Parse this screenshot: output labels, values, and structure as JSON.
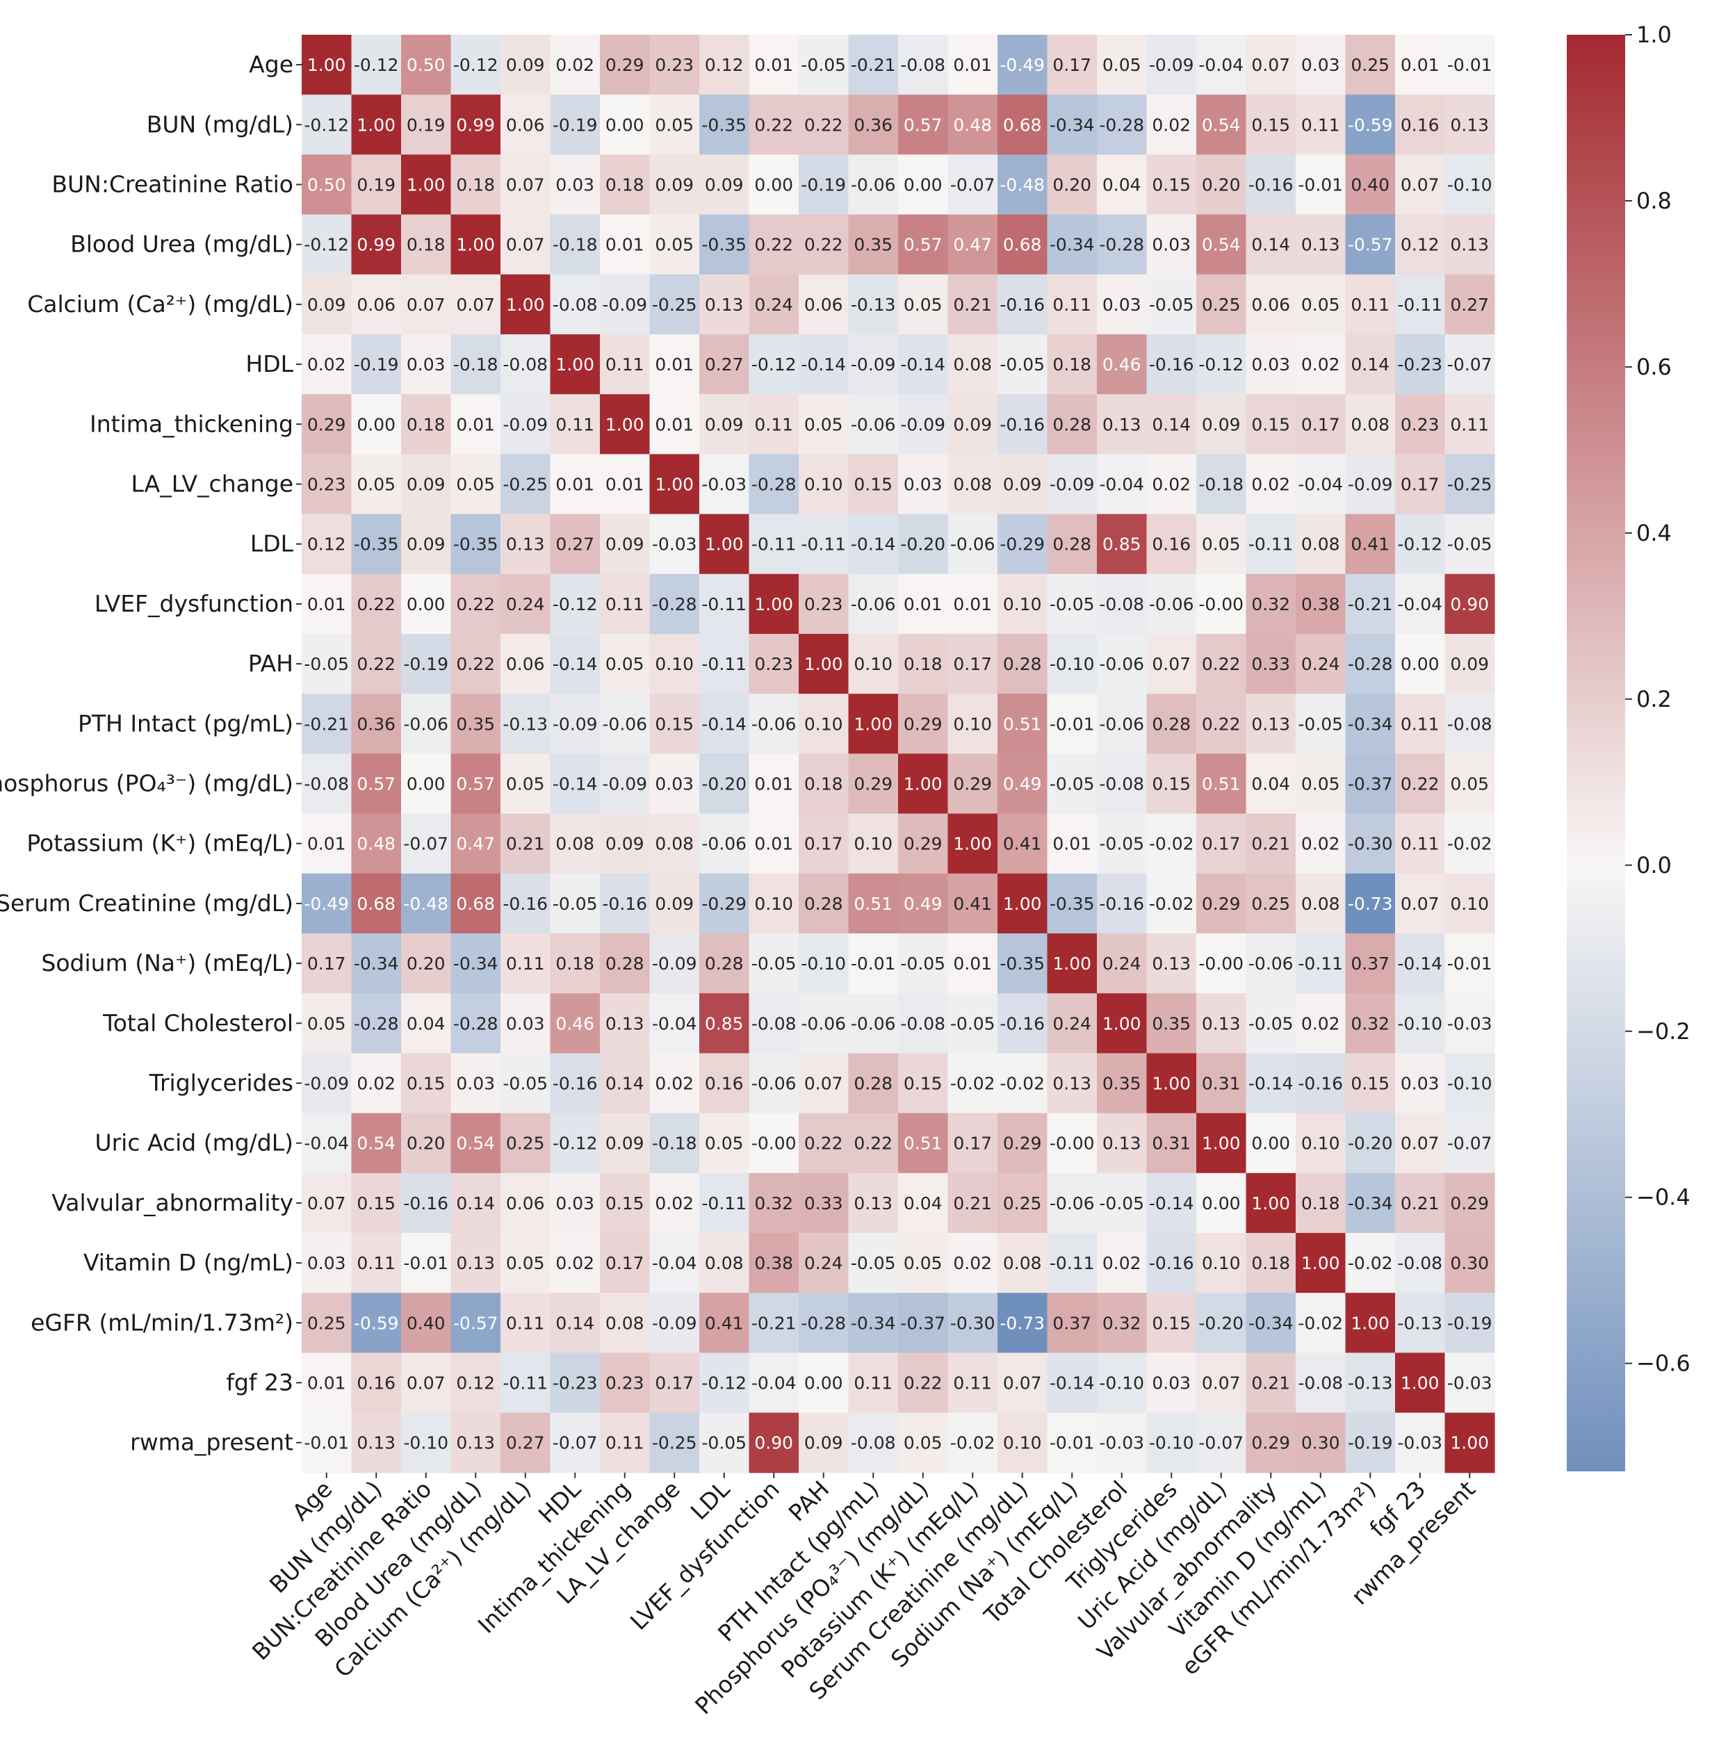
{
  "chart_data": {
    "type": "heatmap",
    "title": "",
    "xlabel": "",
    "ylabel": "",
    "labels": [
      "Age",
      "BUN (mg/dL)",
      "BUN:Creatinine Ratio",
      "Blood Urea (mg/dL)",
      "Calcium (Ca²⁺) (mg/dL)",
      "HDL",
      "Intima_thickening",
      "LA_LV_change",
      "LDL",
      "LVEF_dysfunction",
      "PAH",
      "PTH Intact (pg/mL)",
      "Phosphorus (PO₄³⁻) (mg/dL)",
      "Potassium (K⁺) (mEq/L)",
      "Serum Creatinine (mg/dL)",
      "Sodium (Na⁺) (mEq/L)",
      "Total Cholesterol",
      "Triglycerides",
      "Uric Acid (mg/dL)",
      "Valvular_abnormality",
      "Vitamin D (ng/mL)",
      "eGFR (mL/min/1.73m²)",
      "fgf 23",
      "rwma_present"
    ],
    "matrix": [
      [
        "1.00",
        "-0.12",
        "0.50",
        "-0.12",
        "0.09",
        "0.02",
        "0.29",
        "0.23",
        "0.12",
        "0.01",
        "-0.05",
        "-0.21",
        "-0.08",
        "0.01",
        "-0.49",
        "0.17",
        "0.05",
        "-0.09",
        "-0.04",
        "0.07",
        "0.03",
        "0.25",
        "0.01",
        "-0.01"
      ],
      [
        "-0.12",
        "1.00",
        "0.19",
        "0.99",
        "0.06",
        "-0.19",
        "0.00",
        "0.05",
        "-0.35",
        "0.22",
        "0.22",
        "0.36",
        "0.57",
        "0.48",
        "0.68",
        "-0.34",
        "-0.28",
        "0.02",
        "0.54",
        "0.15",
        "0.11",
        "-0.59",
        "0.16",
        "0.13"
      ],
      [
        "0.50",
        "0.19",
        "1.00",
        "0.18",
        "0.07",
        "0.03",
        "0.18",
        "0.09",
        "0.09",
        "0.00",
        "-0.19",
        "-0.06",
        "0.00",
        "-0.07",
        "-0.48",
        "0.20",
        "0.04",
        "0.15",
        "0.20",
        "-0.16",
        "-0.01",
        "0.40",
        "0.07",
        "-0.10"
      ],
      [
        "-0.12",
        "0.99",
        "0.18",
        "1.00",
        "0.07",
        "-0.18",
        "0.01",
        "0.05",
        "-0.35",
        "0.22",
        "0.22",
        "0.35",
        "0.57",
        "0.47",
        "0.68",
        "-0.34",
        "-0.28",
        "0.03",
        "0.54",
        "0.14",
        "0.13",
        "-0.57",
        "0.12",
        "0.13"
      ],
      [
        "0.09",
        "0.06",
        "0.07",
        "0.07",
        "1.00",
        "-0.08",
        "-0.09",
        "-0.25",
        "0.13",
        "0.24",
        "0.06",
        "-0.13",
        "0.05",
        "0.21",
        "-0.16",
        "0.11",
        "0.03",
        "-0.05",
        "0.25",
        "0.06",
        "0.05",
        "0.11",
        "-0.11",
        "0.27"
      ],
      [
        "0.02",
        "-0.19",
        "0.03",
        "-0.18",
        "-0.08",
        "1.00",
        "0.11",
        "0.01",
        "0.27",
        "-0.12",
        "-0.14",
        "-0.09",
        "-0.14",
        "0.08",
        "-0.05",
        "0.18",
        "0.46",
        "-0.16",
        "-0.12",
        "0.03",
        "0.02",
        "0.14",
        "-0.23",
        "-0.07"
      ],
      [
        "0.29",
        "0.00",
        "0.18",
        "0.01",
        "-0.09",
        "0.11",
        "1.00",
        "0.01",
        "0.09",
        "0.11",
        "0.05",
        "-0.06",
        "-0.09",
        "0.09",
        "-0.16",
        "0.28",
        "0.13",
        "0.14",
        "0.09",
        "0.15",
        "0.17",
        "0.08",
        "0.23",
        "0.11"
      ],
      [
        "0.23",
        "0.05",
        "0.09",
        "0.05",
        "-0.25",
        "0.01",
        "0.01",
        "1.00",
        "-0.03",
        "-0.28",
        "0.10",
        "0.15",
        "0.03",
        "0.08",
        "0.09",
        "-0.09",
        "-0.04",
        "0.02",
        "-0.18",
        "0.02",
        "-0.04",
        "-0.09",
        "0.17",
        "-0.25"
      ],
      [
        "0.12",
        "-0.35",
        "0.09",
        "-0.35",
        "0.13",
        "0.27",
        "0.09",
        "-0.03",
        "1.00",
        "-0.11",
        "-0.11",
        "-0.14",
        "-0.20",
        "-0.06",
        "-0.29",
        "0.28",
        "0.85",
        "0.16",
        "0.05",
        "-0.11",
        "0.08",
        "0.41",
        "-0.12",
        "-0.05"
      ],
      [
        "0.01",
        "0.22",
        "0.00",
        "0.22",
        "0.24",
        "-0.12",
        "0.11",
        "-0.28",
        "-0.11",
        "1.00",
        "0.23",
        "-0.06",
        "0.01",
        "0.01",
        "0.10",
        "-0.05",
        "-0.08",
        "-0.06",
        "-0.00",
        "0.32",
        "0.38",
        "-0.21",
        "-0.04",
        "0.90"
      ],
      [
        "-0.05",
        "0.22",
        "-0.19",
        "0.22",
        "0.06",
        "-0.14",
        "0.05",
        "0.10",
        "-0.11",
        "0.23",
        "1.00",
        "0.10",
        "0.18",
        "0.17",
        "0.28",
        "-0.10",
        "-0.06",
        "0.07",
        "0.22",
        "0.33",
        "0.24",
        "-0.28",
        "0.00",
        "0.09"
      ],
      [
        "-0.21",
        "0.36",
        "-0.06",
        "0.35",
        "-0.13",
        "-0.09",
        "-0.06",
        "0.15",
        "-0.14",
        "-0.06",
        "0.10",
        "1.00",
        "0.29",
        "0.10",
        "0.51",
        "-0.01",
        "-0.06",
        "0.28",
        "0.22",
        "0.13",
        "-0.05",
        "-0.34",
        "0.11",
        "-0.08"
      ],
      [
        "-0.08",
        "0.57",
        "0.00",
        "0.57",
        "0.05",
        "-0.14",
        "-0.09",
        "0.03",
        "-0.20",
        "0.01",
        "0.18",
        "0.29",
        "1.00",
        "0.29",
        "0.49",
        "-0.05",
        "-0.08",
        "0.15",
        "0.51",
        "0.04",
        "0.05",
        "-0.37",
        "0.22",
        "0.05"
      ],
      [
        "0.01",
        "0.48",
        "-0.07",
        "0.47",
        "0.21",
        "0.08",
        "0.09",
        "0.08",
        "-0.06",
        "0.01",
        "0.17",
        "0.10",
        "0.29",
        "1.00",
        "0.41",
        "0.01",
        "-0.05",
        "-0.02",
        "0.17",
        "0.21",
        "0.02",
        "-0.30",
        "0.11",
        "-0.02"
      ],
      [
        "-0.49",
        "0.68",
        "-0.48",
        "0.68",
        "-0.16",
        "-0.05",
        "-0.16",
        "0.09",
        "-0.29",
        "0.10",
        "0.28",
        "0.51",
        "0.49",
        "0.41",
        "1.00",
        "-0.35",
        "-0.16",
        "-0.02",
        "0.29",
        "0.25",
        "0.08",
        "-0.73",
        "0.07",
        "0.10"
      ],
      [
        "0.17",
        "-0.34",
        "0.20",
        "-0.34",
        "0.11",
        "0.18",
        "0.28",
        "-0.09",
        "0.28",
        "-0.05",
        "-0.10",
        "-0.01",
        "-0.05",
        "0.01",
        "-0.35",
        "1.00",
        "0.24",
        "0.13",
        "-0.00",
        "-0.06",
        "-0.11",
        "0.37",
        "-0.14",
        "-0.01"
      ],
      [
        "0.05",
        "-0.28",
        "0.04",
        "-0.28",
        "0.03",
        "0.46",
        "0.13",
        "-0.04",
        "0.85",
        "-0.08",
        "-0.06",
        "-0.06",
        "-0.08",
        "-0.05",
        "-0.16",
        "0.24",
        "1.00",
        "0.35",
        "0.13",
        "-0.05",
        "0.02",
        "0.32",
        "-0.10",
        "-0.03"
      ],
      [
        "-0.09",
        "0.02",
        "0.15",
        "0.03",
        "-0.05",
        "-0.16",
        "0.14",
        "0.02",
        "0.16",
        "-0.06",
        "0.07",
        "0.28",
        "0.15",
        "-0.02",
        "-0.02",
        "0.13",
        "0.35",
        "1.00",
        "0.31",
        "-0.14",
        "-0.16",
        "0.15",
        "0.03",
        "-0.10"
      ],
      [
        "-0.04",
        "0.54",
        "0.20",
        "0.54",
        "0.25",
        "-0.12",
        "0.09",
        "-0.18",
        "0.05",
        "-0.00",
        "0.22",
        "0.22",
        "0.51",
        "0.17",
        "0.29",
        "-0.00",
        "0.13",
        "0.31",
        "1.00",
        "0.00",
        "0.10",
        "-0.20",
        "0.07",
        "-0.07"
      ],
      [
        "0.07",
        "0.15",
        "-0.16",
        "0.14",
        "0.06",
        "0.03",
        "0.15",
        "0.02",
        "-0.11",
        "0.32",
        "0.33",
        "0.13",
        "0.04",
        "0.21",
        "0.25",
        "-0.06",
        "-0.05",
        "-0.14",
        "0.00",
        "1.00",
        "0.18",
        "-0.34",
        "0.21",
        "0.29"
      ],
      [
        "0.03",
        "0.11",
        "-0.01",
        "0.13",
        "0.05",
        "0.02",
        "0.17",
        "-0.04",
        "0.08",
        "0.38",
        "0.24",
        "-0.05",
        "0.05",
        "0.02",
        "0.08",
        "-0.11",
        "0.02",
        "-0.16",
        "0.10",
        "0.18",
        "1.00",
        "-0.02",
        "-0.08",
        "0.30"
      ],
      [
        "0.25",
        "-0.59",
        "0.40",
        "-0.57",
        "0.11",
        "0.14",
        "0.08",
        "-0.09",
        "0.41",
        "-0.21",
        "-0.28",
        "-0.34",
        "-0.37",
        "-0.30",
        "-0.73",
        "0.37",
        "0.32",
        "0.15",
        "-0.20",
        "-0.34",
        "-0.02",
        "1.00",
        "-0.13",
        "-0.19"
      ],
      [
        "0.01",
        "0.16",
        "0.07",
        "0.12",
        "-0.11",
        "-0.23",
        "0.23",
        "0.17",
        "-0.12",
        "-0.04",
        "0.00",
        "0.11",
        "0.22",
        "0.11",
        "0.07",
        "-0.14",
        "-0.10",
        "0.03",
        "0.07",
        "0.21",
        "-0.08",
        "-0.13",
        "1.00",
        "-0.03"
      ],
      [
        "-0.01",
        "0.13",
        "-0.10",
        "0.13",
        "0.27",
        "-0.07",
        "0.11",
        "-0.25",
        "-0.05",
        "0.90",
        "0.09",
        "-0.08",
        "0.05",
        "-0.02",
        "0.10",
        "-0.01",
        "-0.03",
        "-0.10",
        "-0.07",
        "0.29",
        "0.30",
        "-0.19",
        "-0.03",
        "1.00"
      ]
    ],
    "colormap": {
      "name": "vlag",
      "min": -0.73,
      "max": 1.0,
      "low_color": "#6f8fbd",
      "mid_color": "#f8f6f5",
      "high_color": "#a42a30"
    },
    "colorbar": {
      "ticks": [
        "1.0",
        "0.8",
        "0.6",
        "0.4",
        "0.2",
        "0.0",
        "−0.2",
        "−0.4",
        "−0.6"
      ],
      "tick_values": [
        1.0,
        0.8,
        0.6,
        0.4,
        0.2,
        0.0,
        -0.2,
        -0.4,
        -0.6
      ]
    }
  }
}
